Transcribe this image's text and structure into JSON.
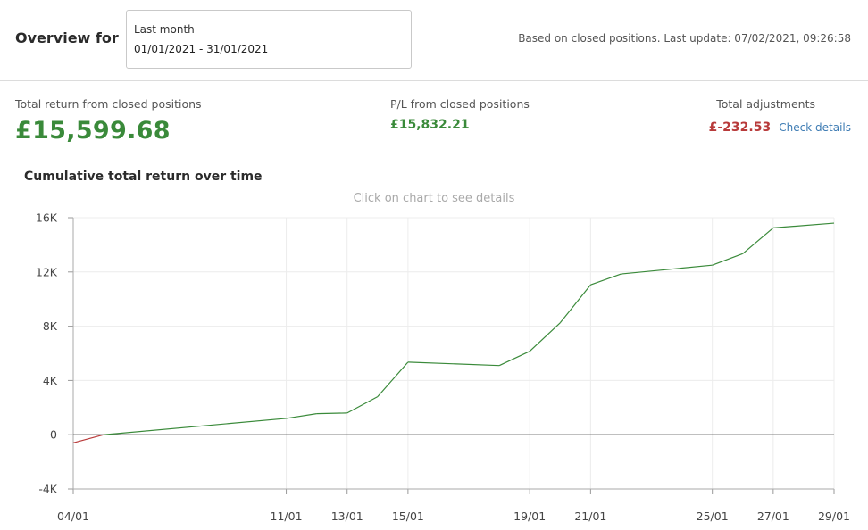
{
  "header": {
    "overview_label": "Overview for",
    "period_name": "Last month",
    "period_range": "01/01/2021 - 31/01/2021",
    "update_note": "Based on closed positions. Last update: 07/02/2021, 09:26:58"
  },
  "summary": {
    "total_return_label": "Total return from closed positions",
    "total_return_value": "£15,599.68",
    "pl_label": "P/L from closed positions",
    "pl_value": "£15,832.21",
    "adjustments_label": "Total adjustments",
    "adjustments_value": "£-232.53",
    "check_details": "Check details"
  },
  "colors": {
    "positive": "#3a8a3a",
    "negative": "#b83a3a",
    "link": "#3d7bb3"
  },
  "chart": {
    "title": "Cumulative total return over time",
    "hint": "Click on chart to see details"
  },
  "chart_data": {
    "type": "line",
    "title": "Cumulative total return over time",
    "x_tick_labels": [
      "04/01",
      "11/01",
      "13/01",
      "15/01",
      "19/01",
      "21/01",
      "25/01",
      "27/01",
      "29/01"
    ],
    "y_tick_labels": [
      "-4K",
      "0",
      "4K",
      "8K",
      "12K",
      "16K"
    ],
    "y_ticks": [
      -4000,
      0,
      4000,
      8000,
      12000,
      16000
    ],
    "ylim": [
      -4000,
      16000
    ],
    "grid": true,
    "series": [
      {
        "x": [
          "04/01",
          "05/01",
          "11/01",
          "12/01",
          "13/01",
          "14/01",
          "15/01",
          "18/01",
          "19/01",
          "20/01",
          "21/01",
          "22/01",
          "25/01",
          "26/01",
          "27/01",
          "29/01"
        ],
        "values": [
          -600,
          0,
          1200,
          1550,
          1600,
          2800,
          5350,
          5100,
          6150,
          8250,
          11050,
          11850,
          12500,
          13350,
          15250,
          15600
        ]
      }
    ]
  }
}
